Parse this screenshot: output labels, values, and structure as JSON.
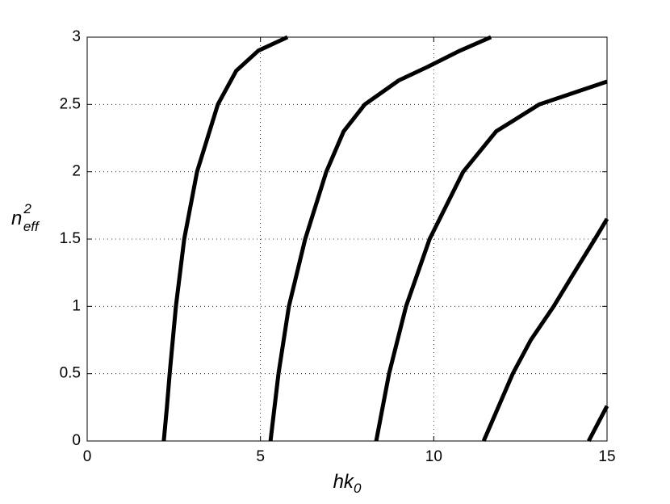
{
  "chart_data": {
    "type": "line",
    "xlabel": {
      "base": "hk",
      "sub": "0"
    },
    "ylabel": {
      "base": "n",
      "sup": "2",
      "sub": "eff"
    },
    "series": [
      {
        "color": "#000000",
        "x": [
          2.21,
          2.3,
          2.38,
          2.56,
          2.8,
          3.17,
          3.77,
          4.3,
          4.94,
          5.78
        ],
        "values": [
          0,
          0.25,
          0.5,
          1,
          1.5,
          2,
          2.5,
          2.75,
          2.9,
          3
        ]
      },
      {
        "color": "#000000",
        "x": [
          5.29,
          5.52,
          5.82,
          6.29,
          6.9,
          7.4,
          8.01,
          9.0,
          9.83,
          10.76,
          11.65
        ],
        "values": [
          0,
          0.5,
          1,
          1.5,
          2,
          2.3,
          2.5,
          2.68,
          2.78,
          2.9,
          3
        ]
      },
      {
        "color": "#000000",
        "x": [
          8.34,
          8.71,
          9.2,
          9.88,
          10.85,
          11.8,
          13.04,
          15
        ],
        "values": [
          0,
          0.5,
          1,
          1.5,
          2,
          2.3,
          2.5,
          2.67
        ]
      },
      {
        "color": "#000000",
        "x": [
          11.44,
          12.28,
          12.8,
          13.46,
          14.05,
          14.65,
          15
        ],
        "values": [
          0,
          0.5,
          0.75,
          1,
          1.25,
          1.5,
          1.65
        ]
      },
      {
        "color": "#000000",
        "x": [
          14.47,
          15
        ],
        "values": [
          0,
          0.26
        ]
      }
    ],
    "xlim": [
      0,
      15
    ],
    "xticks": [
      0,
      5,
      10,
      15
    ],
    "ylim": [
      0,
      3
    ],
    "yticks": [
      0,
      0.5,
      1,
      1.5,
      2,
      2.5,
      3
    ],
    "grid": true
  }
}
